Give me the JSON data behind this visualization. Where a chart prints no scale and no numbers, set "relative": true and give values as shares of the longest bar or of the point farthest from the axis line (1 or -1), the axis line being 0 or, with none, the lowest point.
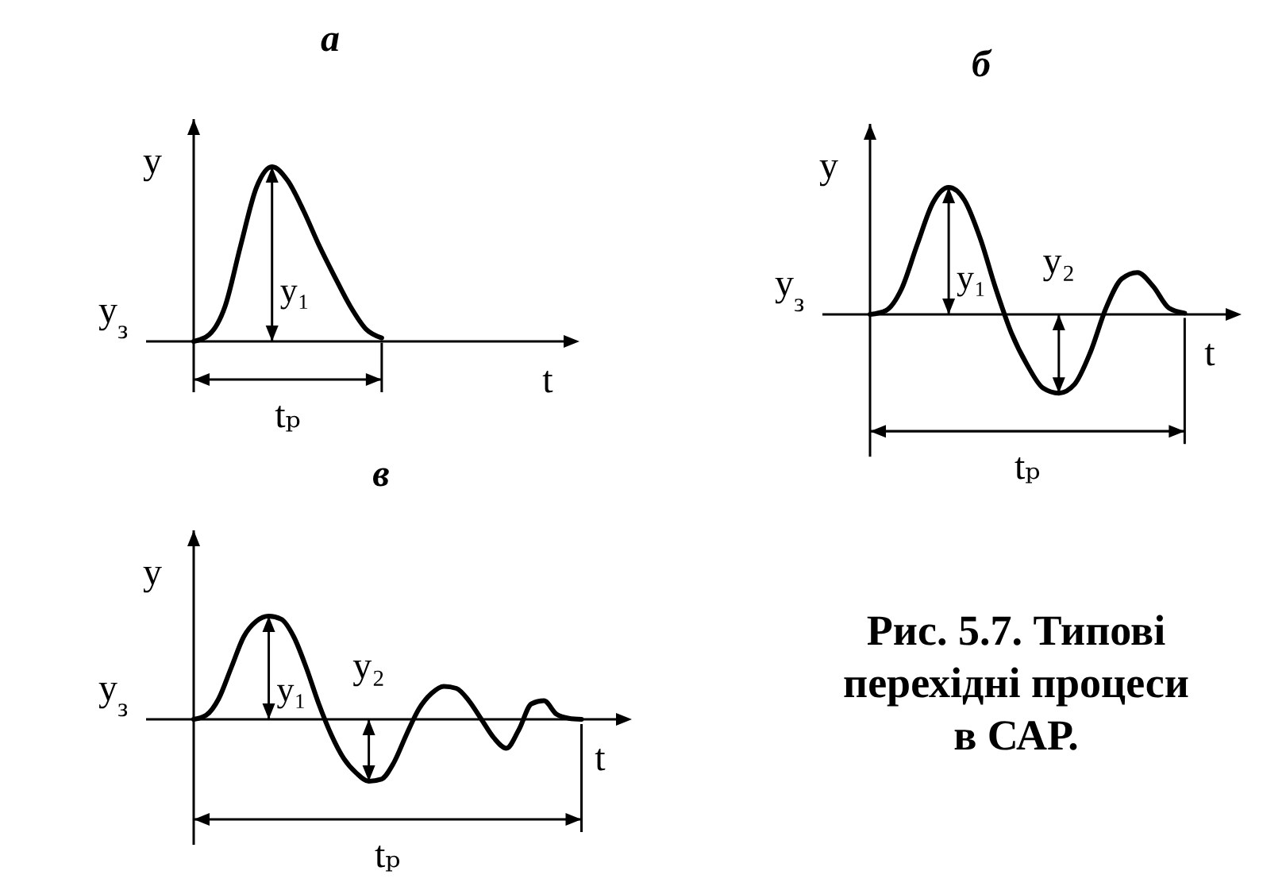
{
  "chart_data": [
    {
      "type": "line",
      "title": "а",
      "xlabel": "t",
      "ylabel": "y",
      "relative": true,
      "categories": [
        null,
        null,
        null,
        null,
        null,
        null,
        null,
        null,
        null,
        null,
        null,
        null,
        null,
        null,
        null,
        null,
        null,
        null,
        null,
        null,
        null,
        null,
        null,
        null
      ],
      "series": [
        {
          "color": "#000000",
          "values": [
            0,
            0.04,
            0.2,
            0.55,
            0.88,
            1,
            0.92,
            0.75,
            0.55,
            0.37,
            0.2,
            0.07,
            0.02,
            null,
            null,
            null,
            null,
            null,
            null,
            null,
            null,
            null,
            null,
            null
          ]
        }
      ],
      "annotations": [
        "y$_{з}$",
        "y₁",
        "tₚ"
      ]
    },
    {
      "type": "line",
      "title": "б",
      "xlabel": "t",
      "ylabel": "y",
      "relative": true,
      "categories": [
        null,
        null,
        null,
        null,
        null,
        null,
        null,
        null,
        null,
        null,
        null,
        null,
        null,
        null,
        null,
        null,
        null,
        null,
        null,
        null,
        null,
        null,
        null
      ],
      "series": [
        {
          "color": "#000000",
          "values": [
            0,
            0.03,
            0.2,
            0.55,
            0.88,
            1,
            0.9,
            0.6,
            0.2,
            -0.15,
            -0.4,
            -0.58,
            -0.62,
            -0.55,
            -0.3,
            0.05,
            0.28,
            0.33,
            0.22,
            0.05,
            0.01,
            null,
            null
          ]
        }
      ],
      "annotations": [
        "y$_{з}$",
        "y₁",
        "y₂",
        "tₚ"
      ]
    },
    {
      "type": "line",
      "title": "в",
      "xlabel": "t",
      "ylabel": "y",
      "relative": true,
      "categories": [
        null,
        null,
        null,
        null,
        null,
        null,
        null,
        null,
        null,
        null,
        null,
        null,
        null,
        null,
        null,
        null,
        null,
        null,
        null,
        null,
        null,
        null,
        null,
        null,
        null,
        null,
        null,
        null,
        null,
        null,
        null,
        null,
        null,
        null
      ],
      "series": [
        {
          "color": "#000000",
          "values": [
            0,
            0.04,
            0.2,
            0.5,
            0.8,
            0.95,
            1,
            0.97,
            0.8,
            0.5,
            0.15,
            -0.15,
            -0.38,
            -0.52,
            -0.6,
            -0.58,
            -0.42,
            -0.15,
            0.1,
            0.25,
            0.32,
            0.3,
            0.18,
            0,
            -0.18,
            -0.28,
            -0.1,
            0.15,
            0.18,
            0.05,
            0.01,
            0,
            null,
            null
          ]
        }
      ],
      "annotations": [
        "y$_{з}$",
        "y₁",
        "y₂",
        "tₚ"
      ]
    },
    {
      "type": "other",
      "title": "Рис. 5.7. Типові перехідні процеси в САР."
    }
  ]
}
